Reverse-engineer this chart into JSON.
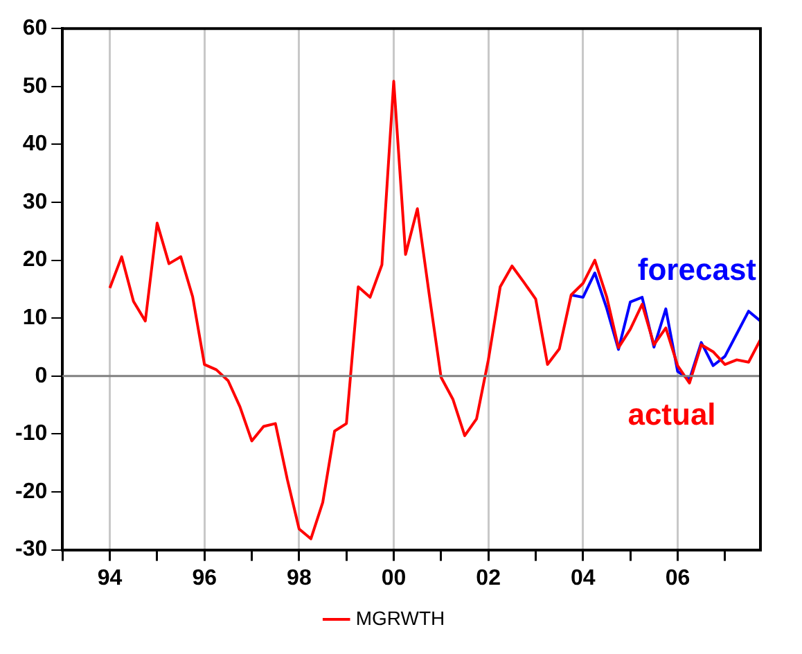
{
  "chart_data": {
    "type": "line",
    "x": [
      1994,
      1994.25,
      1994.5,
      1994.75,
      1995,
      1995.25,
      1995.5,
      1995.75,
      1996,
      1996.25,
      1996.5,
      1996.75,
      1997,
      1997.25,
      1997.5,
      1997.75,
      1998,
      1998.25,
      1998.5,
      1998.75,
      1999,
      1999.25,
      1999.5,
      1999.75,
      2000,
      2000.25,
      2000.5,
      2000.75,
      2001,
      2001.25,
      2001.5,
      2001.75,
      2002,
      2002.25,
      2002.5,
      2002.75,
      2003,
      2003.25,
      2003.5,
      2003.75,
      2004,
      2004.25,
      2004.5,
      2004.75,
      2005,
      2005.25,
      2005.5,
      2005.75,
      2006,
      2006.25,
      2006.5,
      2006.75,
      2007,
      2007.25,
      2007.5,
      2007.75
    ],
    "series": [
      {
        "name": "forecast",
        "color": "#0000ff",
        "values": [
          null,
          null,
          null,
          null,
          null,
          null,
          null,
          null,
          null,
          null,
          null,
          null,
          null,
          null,
          null,
          null,
          null,
          null,
          null,
          null,
          null,
          null,
          null,
          null,
          null,
          null,
          null,
          null,
          null,
          null,
          null,
          null,
          null,
          null,
          null,
          null,
          null,
          null,
          null,
          14.0,
          13.6,
          17.8,
          11.7,
          4.6,
          12.8,
          13.6,
          5.0,
          11.6,
          0.8,
          -0.6,
          5.8,
          1.8,
          3.4,
          7.3,
          11.2,
          9.5
        ]
      },
      {
        "name": "MGRWTH",
        "color": "#ff0000",
        "values": [
          15.2,
          20.6,
          12.9,
          9.5,
          26.4,
          19.4,
          20.6,
          13.7,
          2.0,
          1.1,
          -0.8,
          -5.3,
          -11.2,
          -8.7,
          -8.2,
          -17.8,
          -26.4,
          -28.1,
          -21.8,
          -9.5,
          -8.2,
          15.4,
          13.6,
          19.2,
          50.9,
          21.0,
          28.9,
          14.1,
          -0.2,
          -4.0,
          -10.3,
          -7.4,
          2.8,
          15.4,
          19.0,
          16.2,
          13.3,
          2.0,
          4.7,
          14.0,
          16.0,
          20.0,
          13.7,
          4.9,
          8.1,
          12.4,
          5.4,
          8.3,
          1.8,
          -1.2,
          5.4,
          4.2,
          2.0,
          2.8,
          2.4,
          6.3
        ]
      }
    ],
    "annotations": [
      "actual"
    ],
    "xlim": [
      1993,
      2007.75
    ],
    "xticks": [
      {
        "value": 1993,
        "label": null
      },
      {
        "value": 1994,
        "label": "94"
      },
      {
        "value": 1995,
        "label": null
      },
      {
        "value": 1996,
        "label": "96"
      },
      {
        "value": 1997,
        "label": null
      },
      {
        "value": 1998,
        "label": "98"
      },
      {
        "value": 1999,
        "label": null
      },
      {
        "value": 2000,
        "label": "00"
      },
      {
        "value": 2001,
        "label": null
      },
      {
        "value": 2002,
        "label": "02"
      },
      {
        "value": 2003,
        "label": null
      },
      {
        "value": 2004,
        "label": "04"
      },
      {
        "value": 2005,
        "label": null
      },
      {
        "value": 2006,
        "label": "06"
      },
      {
        "value": 2007,
        "label": null
      }
    ],
    "ylim": [
      -30,
      60
    ],
    "yticks": [
      -30,
      -20,
      -10,
      0,
      10,
      20,
      30,
      40,
      50,
      60
    ],
    "ref_lines": [
      {
        "axis": "y",
        "value": 0,
        "color": "#808080"
      }
    ],
    "grid": "x",
    "legend": "bottom",
    "marker": "none",
    "line_style": "solid"
  }
}
